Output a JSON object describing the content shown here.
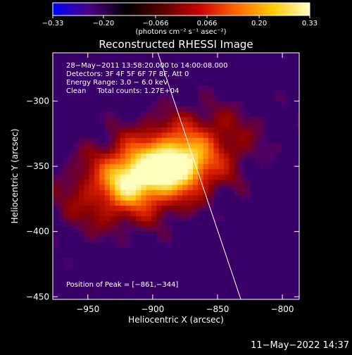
{
  "chart_data": {
    "type": "heatmap",
    "title": "Reconstructed RHESSI Image",
    "xlabel": "Heliocentric X (arcsec)",
    "ylabel": "Heliocentric Y (arcsec)",
    "xlim": [
      -977,
      -787
    ],
    "ylim": [
      -452,
      -263
    ],
    "x_ticks": [
      -950,
      -900,
      -850,
      -800
    ],
    "y_ticks": [
      -300,
      -350,
      -400,
      -450
    ],
    "x_tick_labels": [
      "−950",
      "−900",
      "−850",
      "−800"
    ],
    "y_tick_labels": [
      "−300",
      "−350",
      "−400",
      "−450"
    ],
    "colorbar": {
      "range": [
        -0.33,
        0.33
      ],
      "ticks": [
        -0.33,
        -0.2,
        -0.066,
        0.066,
        0.2,
        0.33
      ],
      "tick_labels": [
        "−0.33",
        "−0.20",
        "−0.066",
        "0.066",
        "0.20",
        "0.33"
      ],
      "unit_label": "(photons cm⁻² s⁻¹ asec⁻²)",
      "colors": [
        "#0000ff",
        "#4b0082",
        "#000000",
        "#5a0000",
        "#cc0000",
        "#ff6600",
        "#ffcc00",
        "#ffffcc"
      ]
    },
    "annotations": [
      "28−May−2011 13:58:20.000 to 14:00:08.000",
      "Detectors: 3F 4F 5F 6F 7F 8F, Att 0",
      "Energy Range: 3.0 − 6.0 keV",
      "Clean     Total counts: 1.27E+04"
    ],
    "peak_label": "Position of Peak = [−861,−344]",
    "peak": [
      -861,
      -344
    ],
    "sources": [
      {
        "x": -918,
        "y": -360,
        "amp": 0.34
      },
      {
        "x": -876,
        "y": -348,
        "amp": 0.35
      },
      {
        "x": -895,
        "y": -352,
        "amp": 0.28
      }
    ],
    "limb_line": {
      "points": [
        [
          -896,
          -263
        ],
        [
          -832,
          -452
        ]
      ]
    },
    "background_colors": {
      "plot_bg": "#380066",
      "limb": "#ffffff"
    }
  },
  "footer": {
    "timestamp": "11−May−2022 14:37"
  }
}
